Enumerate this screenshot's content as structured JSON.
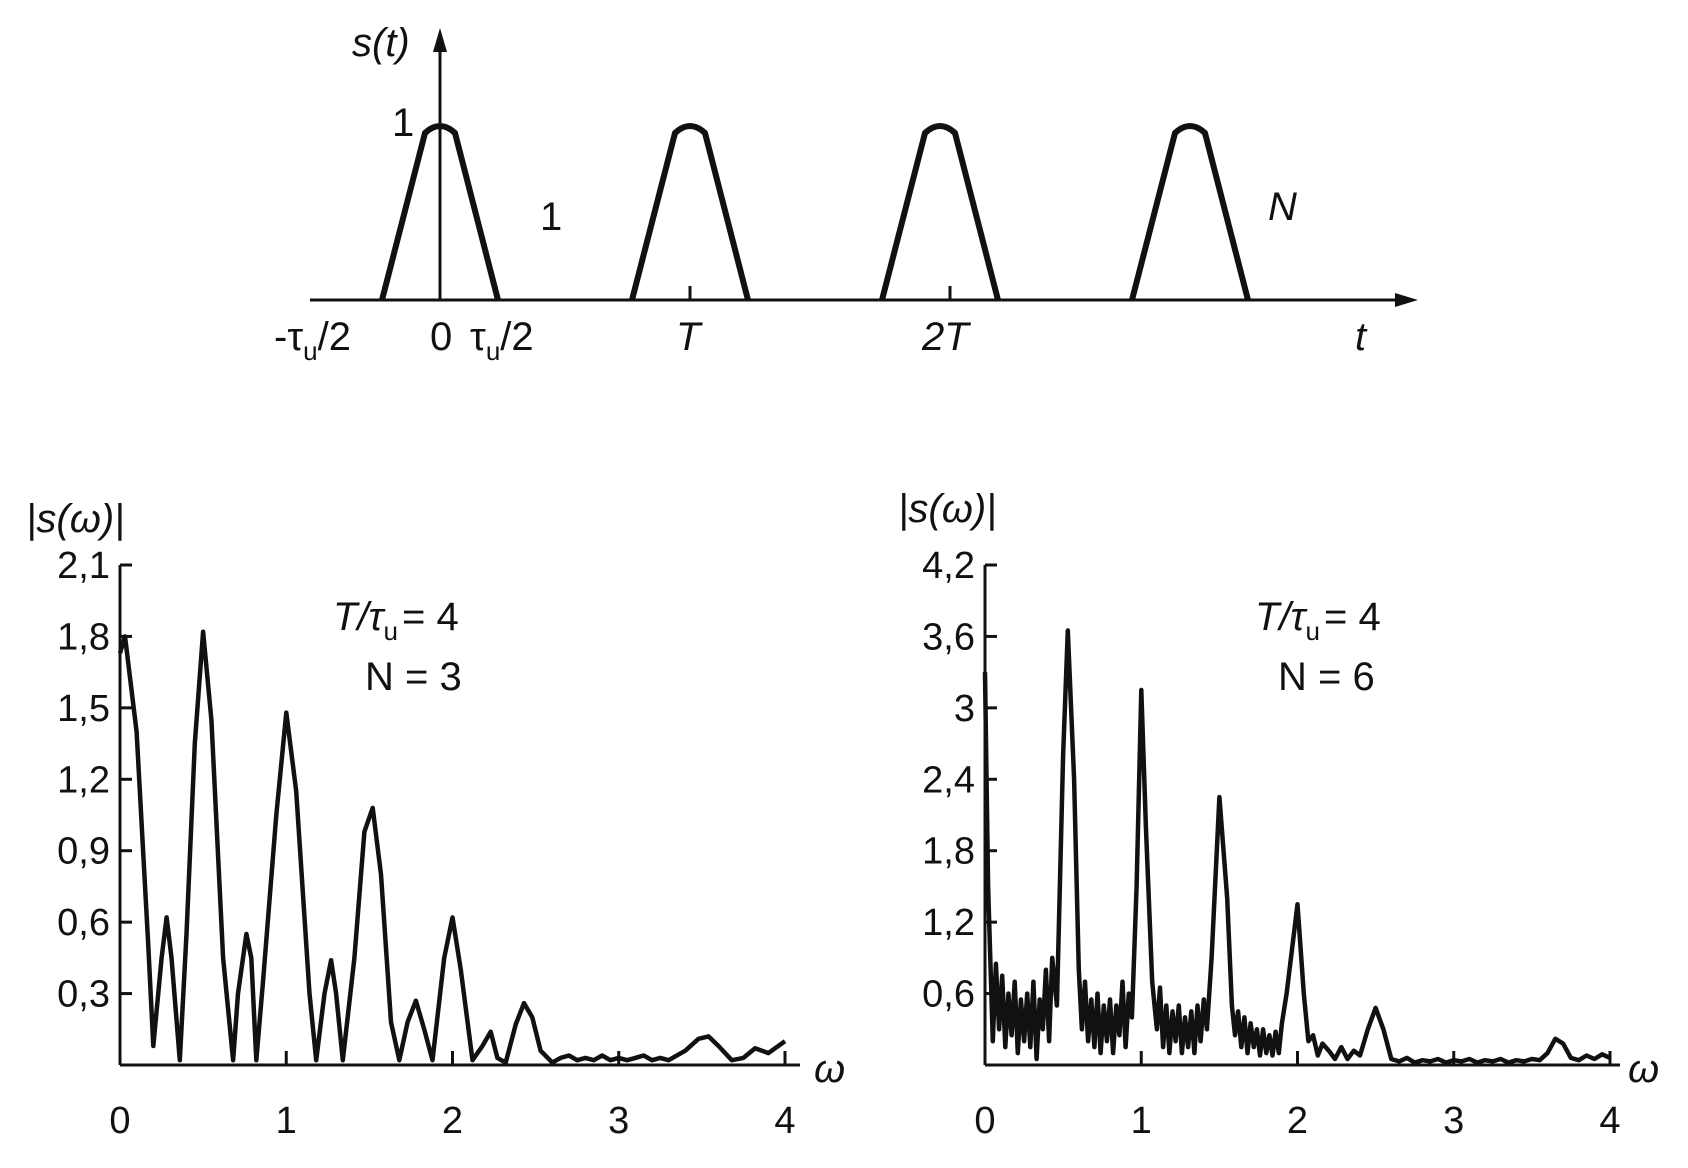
{
  "chart_data": [
    {
      "type": "line",
      "ylabel": "s(t)",
      "xlabel": "t",
      "y_tick": "1",
      "pulse_labels": [
        "1",
        "N"
      ],
      "x_tick_labels": {
        "minus_half": "-τ",
        "minus_half_sub": "u",
        "minus_half_tail": "/2",
        "zero": "0",
        "plus_half": "τ",
        "plus_half_sub": "u",
        "plus_half_tail": "/2",
        "T": "T",
        "two_T": "2T"
      },
      "pulse_centers": [
        0,
        4,
        8,
        12
      ],
      "pulse_amplitude": 1
    },
    {
      "type": "line",
      "ylabel": "|s(ω)|",
      "xlabel": "ω",
      "annotation_ratio": "T/τ",
      "annotation_ratio_sub": "u",
      "annotation_ratio_value": "= 4",
      "annotation_n": "N = 3",
      "y_ticks": [
        "0,3",
        "0,6",
        "0,9",
        "1,2",
        "1,5",
        "1,8",
        "2,1"
      ],
      "x_ticks": [
        "0",
        "1",
        "2",
        "3",
        "4"
      ],
      "ylim": [
        0,
        2.1
      ],
      "xlim": [
        0,
        4
      ],
      "series": [
        {
          "x": [
            0,
            0.03,
            0.1,
            0.17,
            0.2,
            0.25,
            0.28,
            0.31,
            0.36,
            0.4,
            0.45,
            0.5,
            0.55,
            0.62,
            0.68,
            0.71,
            0.76,
            0.79,
            0.82,
            0.86,
            0.94,
            1.0,
            1.06,
            1.14,
            1.18,
            1.23,
            1.27,
            1.3,
            1.34,
            1.41,
            1.47,
            1.52,
            1.57,
            1.63,
            1.68,
            1.73,
            1.78,
            1.83,
            1.88,
            1.95,
            2.0,
            2.05,
            2.12,
            2.18,
            2.23,
            2.27,
            2.32,
            2.38,
            2.43,
            2.48,
            2.53,
            2.6,
            2.65,
            2.7,
            2.75,
            2.8,
            2.85,
            2.9,
            2.95,
            3.0,
            3.05,
            3.1,
            3.15,
            3.2,
            3.25,
            3.3,
            3.4,
            3.48,
            3.54,
            3.6,
            3.68,
            3.75,
            3.82,
            3.9,
            4.0
          ],
          "y": [
            1.73,
            1.8,
            1.4,
            0.5,
            0.08,
            0.45,
            0.62,
            0.45,
            0.02,
            0.55,
            1.35,
            1.82,
            1.45,
            0.45,
            0.02,
            0.3,
            0.55,
            0.45,
            0.02,
            0.35,
            1.05,
            1.48,
            1.15,
            0.3,
            0.02,
            0.3,
            0.44,
            0.3,
            0.02,
            0.45,
            0.98,
            1.08,
            0.8,
            0.18,
            0.02,
            0.18,
            0.27,
            0.15,
            0.02,
            0.45,
            0.62,
            0.4,
            0.02,
            0.08,
            0.14,
            0.03,
            0.01,
            0.17,
            0.26,
            0.2,
            0.06,
            0.01,
            0.03,
            0.04,
            0.02,
            0.03,
            0.02,
            0.04,
            0.02,
            0.03,
            0.02,
            0.03,
            0.04,
            0.02,
            0.03,
            0.02,
            0.06,
            0.11,
            0.12,
            0.08,
            0.02,
            0.03,
            0.07,
            0.05,
            0.1
          ]
        }
      ]
    },
    {
      "type": "line",
      "ylabel": "|s(ω)|",
      "xlabel": "ω",
      "annotation_ratio": "T/τ",
      "annotation_ratio_sub": "u",
      "annotation_ratio_value": "= 4",
      "annotation_n": "N = 6",
      "y_ticks": [
        "0,6",
        "1,2",
        "1,8",
        "2,4",
        "3",
        "3,6",
        "4,2"
      ],
      "x_ticks": [
        "0",
        "1",
        "2",
        "3",
        "4"
      ],
      "ylim": [
        0,
        4.2
      ],
      "xlim": [
        0,
        4
      ],
      "series": [
        {
          "x": [
            0,
            0.02,
            0.05,
            0.07,
            0.09,
            0.11,
            0.13,
            0.15,
            0.17,
            0.19,
            0.21,
            0.23,
            0.25,
            0.27,
            0.29,
            0.31,
            0.33,
            0.35,
            0.37,
            0.39,
            0.41,
            0.43,
            0.46,
            0.5,
            0.53,
            0.57,
            0.6,
            0.62,
            0.64,
            0.66,
            0.68,
            0.7,
            0.72,
            0.74,
            0.76,
            0.78,
            0.8,
            0.82,
            0.84,
            0.86,
            0.88,
            0.9,
            0.92,
            0.94,
            0.97,
            1.0,
            1.03,
            1.07,
            1.1,
            1.12,
            1.14,
            1.16,
            1.18,
            1.2,
            1.22,
            1.24,
            1.26,
            1.28,
            1.3,
            1.32,
            1.34,
            1.36,
            1.38,
            1.4,
            1.42,
            1.45,
            1.5,
            1.55,
            1.58,
            1.6,
            1.62,
            1.64,
            1.66,
            1.68,
            1.7,
            1.72,
            1.74,
            1.76,
            1.78,
            1.8,
            1.82,
            1.84,
            1.86,
            1.88,
            1.9,
            1.93,
            2.0,
            2.04,
            2.07,
            2.1,
            2.13,
            2.16,
            2.2,
            2.24,
            2.28,
            2.32,
            2.36,
            2.4,
            2.45,
            2.5,
            2.55,
            2.6,
            2.65,
            2.7,
            2.75,
            2.8,
            2.85,
            2.9,
            2.95,
            3.0,
            3.05,
            3.1,
            3.15,
            3.2,
            3.25,
            3.3,
            3.35,
            3.4,
            3.45,
            3.5,
            3.55,
            3.6,
            3.65,
            3.7,
            3.75,
            3.8,
            3.85,
            3.9,
            3.95,
            4.0
          ],
          "y": [
            3.3,
            1.5,
            0.2,
            0.85,
            0.3,
            0.75,
            0.15,
            0.6,
            0.25,
            0.7,
            0.1,
            0.55,
            0.2,
            0.6,
            0.15,
            0.7,
            0.05,
            0.55,
            0.3,
            0.8,
            0.2,
            0.9,
            0.5,
            2.6,
            3.65,
            2.4,
            0.8,
            0.3,
            0.7,
            0.2,
            0.55,
            0.15,
            0.6,
            0.1,
            0.5,
            0.2,
            0.55,
            0.1,
            0.5,
            0.25,
            0.7,
            0.15,
            0.6,
            0.4,
            1.5,
            3.15,
            2.0,
            0.7,
            0.3,
            0.65,
            0.15,
            0.5,
            0.1,
            0.45,
            0.2,
            0.5,
            0.1,
            0.4,
            0.15,
            0.45,
            0.1,
            0.5,
            0.2,
            0.55,
            0.3,
            0.9,
            2.25,
            1.4,
            0.5,
            0.25,
            0.45,
            0.15,
            0.4,
            0.1,
            0.35,
            0.15,
            0.3,
            0.08,
            0.3,
            0.1,
            0.25,
            0.08,
            0.28,
            0.1,
            0.35,
            0.6,
            1.35,
            0.6,
            0.2,
            0.25,
            0.08,
            0.18,
            0.12,
            0.05,
            0.15,
            0.05,
            0.12,
            0.08,
            0.3,
            0.48,
            0.3,
            0.05,
            0.03,
            0.06,
            0.02,
            0.04,
            0.03,
            0.05,
            0.02,
            0.04,
            0.03,
            0.05,
            0.02,
            0.04,
            0.03,
            0.05,
            0.02,
            0.04,
            0.03,
            0.05,
            0.04,
            0.1,
            0.22,
            0.18,
            0.06,
            0.04,
            0.08,
            0.05,
            0.09,
            0.06
          ]
        }
      ]
    }
  ]
}
